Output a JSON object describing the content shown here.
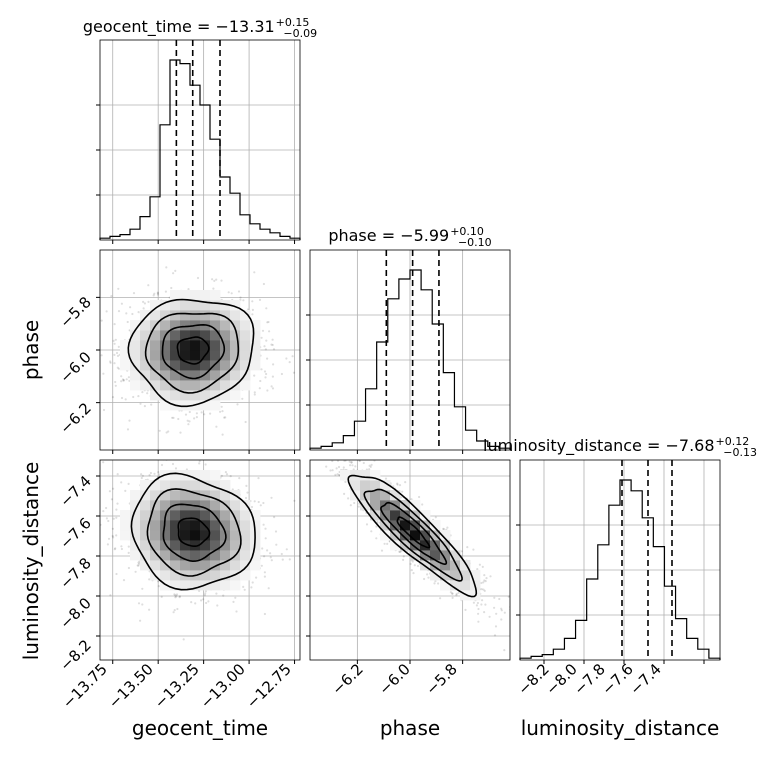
{
  "chart_data": {
    "type": "corner",
    "parameters": [
      "geocent_time",
      "phase",
      "luminosity_distance"
    ],
    "titles": [
      {
        "label": "geocent_time = −13.31",
        "plus": "+0.15",
        "minus": "−0.09"
      },
      {
        "label": "phase = −5.99",
        "plus": "+0.10",
        "minus": "−0.10"
      },
      {
        "label": "luminosity_distance = −7.68",
        "plus": "+0.12",
        "minus": "−0.13"
      }
    ],
    "axes": [
      {
        "name": "geocent_time",
        "range": [
          -13.82,
          -12.72
        ],
        "ticks": [
          -13.75,
          -13.5,
          -13.25,
          -13.0,
          -12.75
        ],
        "tick_labels": [
          "−13.75",
          "−13.50",
          "−13.25",
          "−13.00",
          "−12.75"
        ]
      },
      {
        "name": "phase",
        "range": [
          -6.38,
          -5.62
        ],
        "ticks": [
          -6.2,
          -6.0,
          -5.8
        ],
        "tick_labels": [
          "−6.2",
          "−6.0",
          "−5.8"
        ]
      },
      {
        "name": "luminosity_distance",
        "range": [
          -8.32,
          -7.32
        ],
        "ticks": [
          -8.2,
          -8.0,
          -7.8,
          -7.6,
          -7.4
        ],
        "tick_labels": [
          "−8.2",
          "−8.0",
          "−7.8",
          "−7.6",
          "−7.4"
        ]
      }
    ],
    "quantiles": [
      [
        -13.4,
        -13.31,
        -13.16
      ],
      [
        -6.09,
        -5.99,
        -5.89
      ],
      [
        -7.81,
        -7.68,
        -7.56
      ]
    ],
    "histograms": [
      {
        "param": "geocent_time",
        "counts": [
          1,
          2,
          3,
          6,
          13,
          24,
          64,
          100,
          98,
          86,
          75,
          56,
          35,
          26,
          14,
          9,
          6,
          4,
          2,
          1
        ]
      },
      {
        "param": "phase",
        "counts": [
          1,
          2,
          4,
          8,
          16,
          34,
          60,
          84,
          95,
          100,
          89,
          70,
          43,
          24,
          11,
          5,
          2,
          1
        ]
      },
      {
        "param": "luminosity_distance",
        "counts": [
          1,
          2,
          3,
          6,
          12,
          22,
          45,
          64,
          86,
          100,
          94,
          79,
          63,
          41,
          23,
          12,
          6,
          1
        ]
      }
    ],
    "joint": [
      {
        "x": "geocent_time",
        "y": "phase",
        "mean": [
          -13.31,
          -6.0
        ],
        "sd": [
          0.17,
          0.1
        ],
        "rho": 0.05
      },
      {
        "x": "geocent_time",
        "y": "luminosity_distance",
        "mean": [
          -13.31,
          -7.68
        ],
        "sd": [
          0.17,
          0.14
        ],
        "rho": -0.1
      },
      {
        "x": "phase",
        "y": "luminosity_distance",
        "mean": [
          -5.99,
          -7.68
        ],
        "sd": [
          0.12,
          0.15
        ],
        "rho": -0.9
      }
    ],
    "contour_levels": [
      0.5,
      1.0,
      1.5,
      2.0
    ],
    "grid": true
  }
}
